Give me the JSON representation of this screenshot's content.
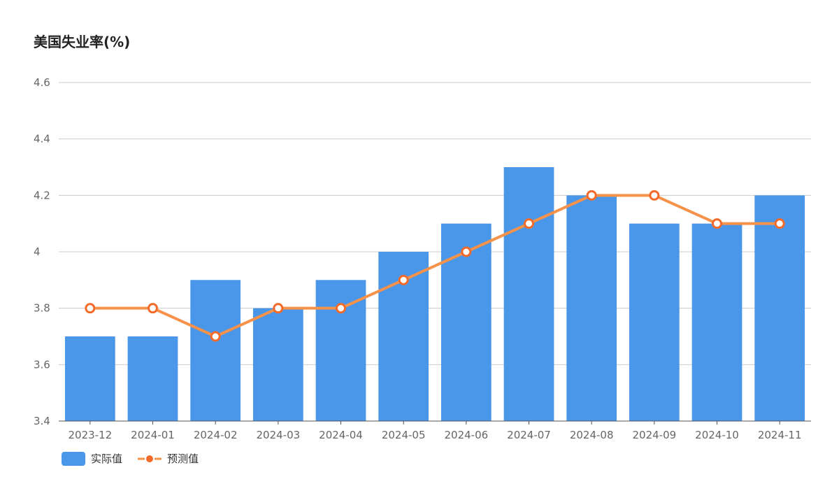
{
  "page": {
    "title": "美国失业率(%)"
  },
  "colors": {
    "bar": "#4a96e8",
    "line": "#f7924a",
    "point_stroke": "#f26b2a",
    "grid": "#cccccc",
    "axis": "#555555"
  },
  "legend": {
    "actual_label": "实际值",
    "forecast_label": "预测值"
  },
  "chart_data": {
    "type": "bar",
    "title": "美国失业率(%)",
    "categories": [
      "2023-12",
      "2024-01",
      "2024-02",
      "2024-03",
      "2024-04",
      "2024-05",
      "2024-06",
      "2024-07",
      "2024-08",
      "2024-09",
      "2024-10",
      "2024-11"
    ],
    "series": [
      {
        "name": "实际值",
        "type": "bar",
        "values": [
          3.7,
          3.7,
          3.9,
          3.8,
          3.9,
          4.0,
          4.1,
          4.3,
          4.2,
          4.1,
          4.1,
          4.2
        ]
      },
      {
        "name": "预测值",
        "type": "line",
        "values": [
          3.8,
          3.8,
          3.7,
          3.8,
          3.8,
          3.9,
          4.0,
          4.1,
          4.2,
          4.2,
          4.1,
          4.1
        ]
      }
    ],
    "ylim": [
      3.4,
      4.6
    ],
    "yticks": [
      "3.4",
      "3.6",
      "3.8",
      "4",
      "4.2",
      "4.4",
      "4.6"
    ],
    "grid": true,
    "legend_position": "bottom-left"
  }
}
